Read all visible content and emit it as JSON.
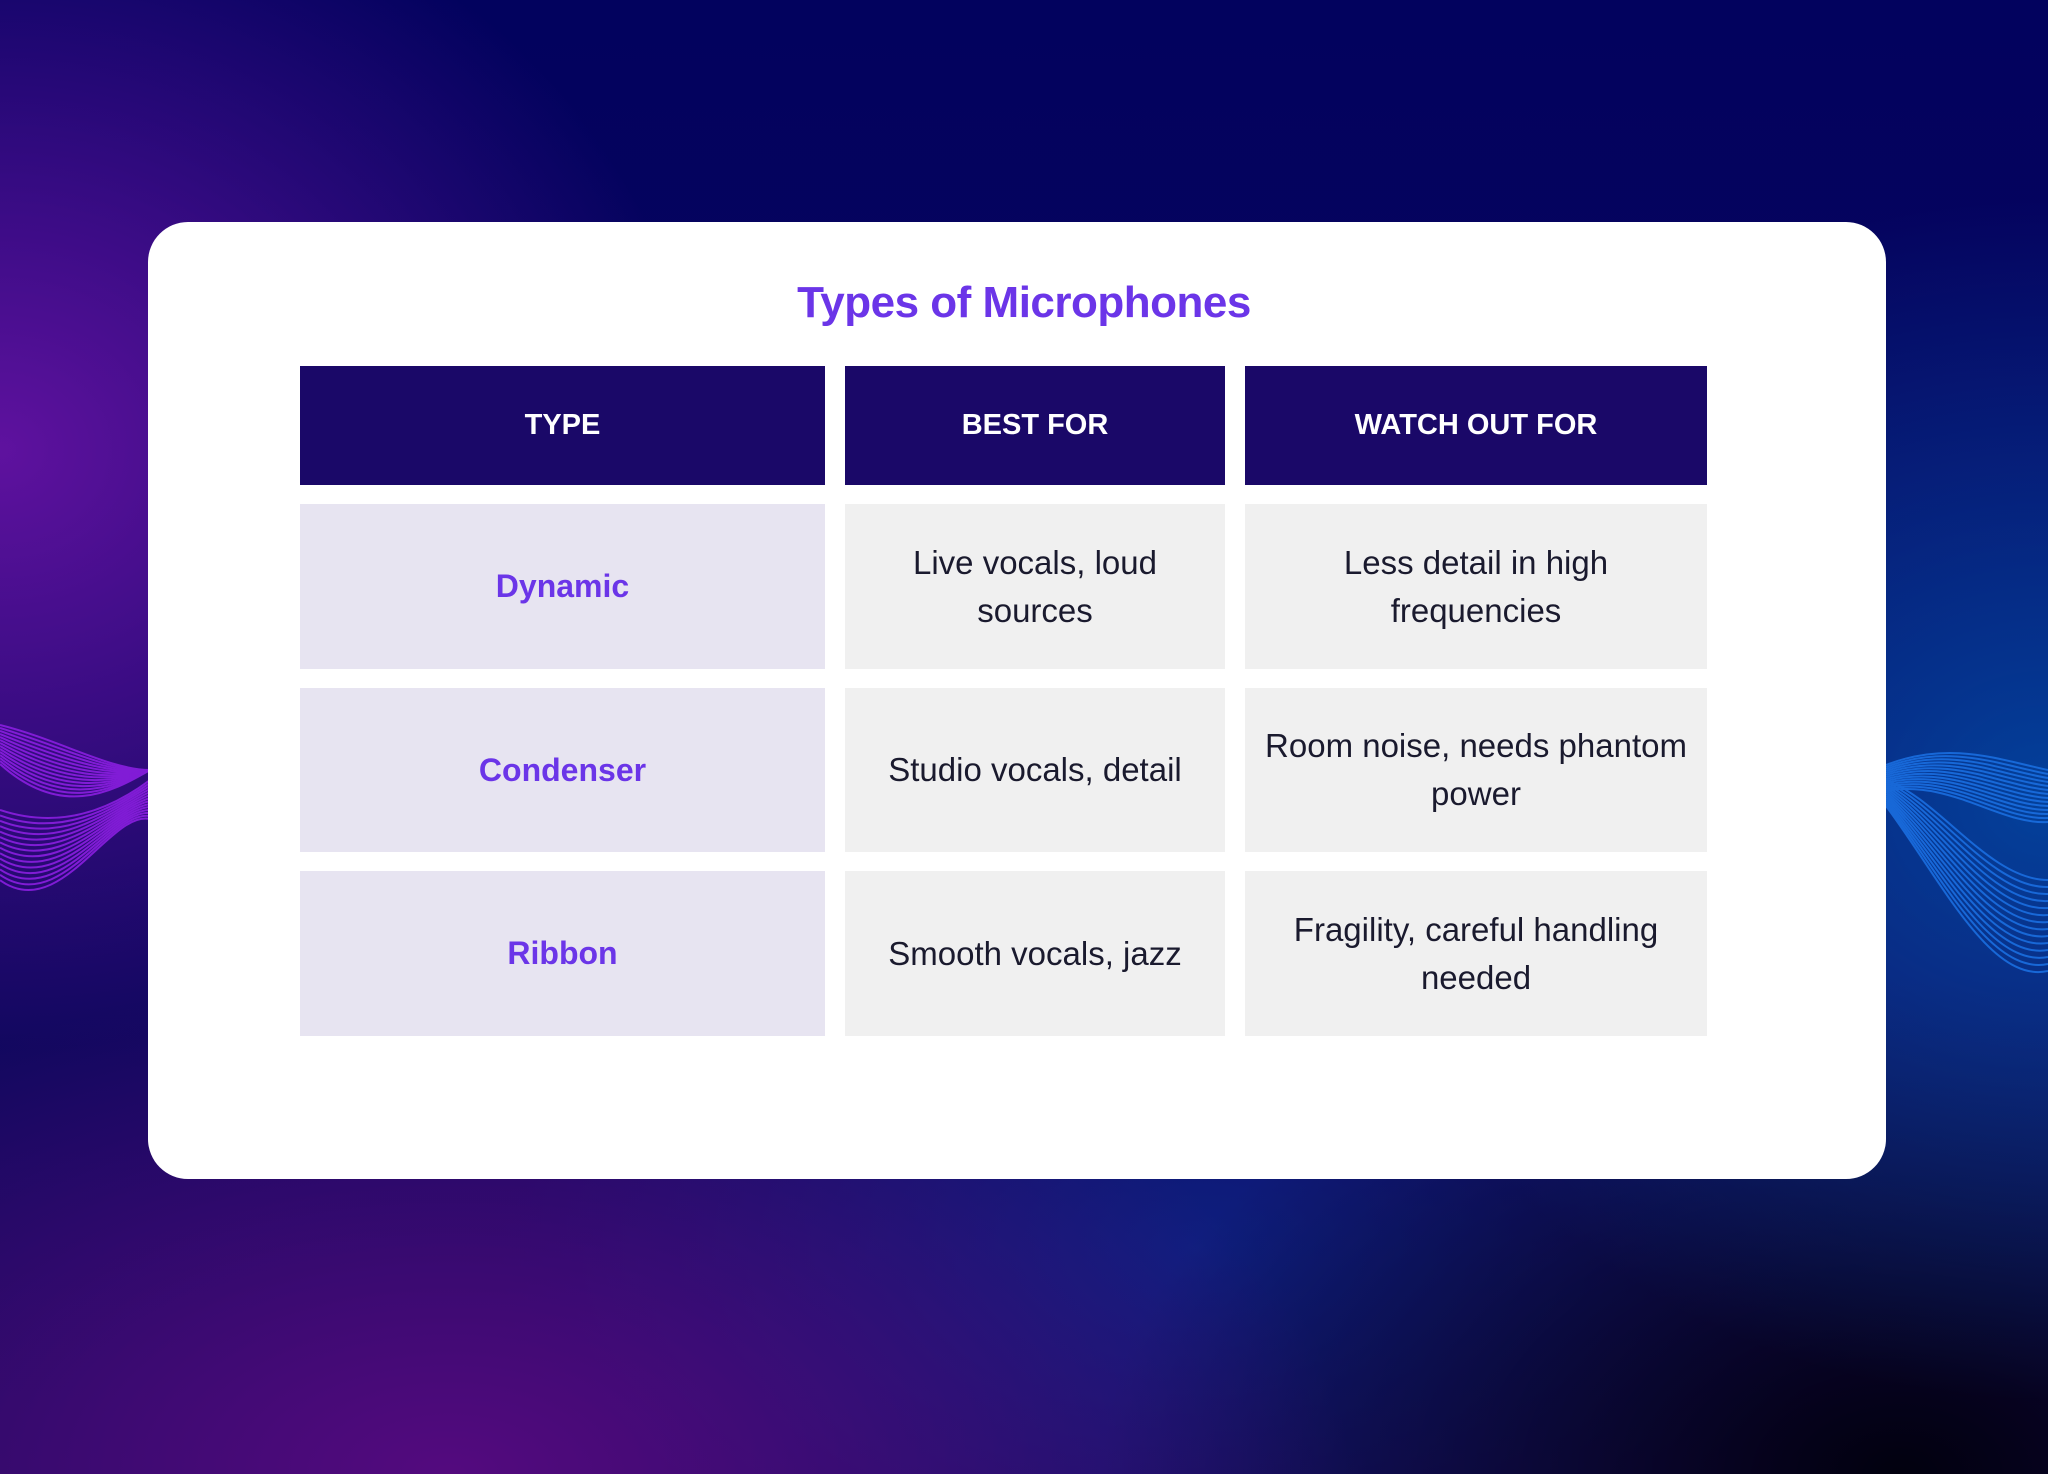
{
  "title": "Types of Microphones",
  "table": {
    "headers": [
      "TYPE",
      "BEST FOR",
      "WATCH OUT FOR"
    ],
    "rows": [
      {
        "type": "Dynamic",
        "best_for": "Live vocals, loud sources",
        "watch_out_for": "Less detail in high frequencies"
      },
      {
        "type": "Condenser",
        "best_for": "Studio vocals, detail",
        "watch_out_for": "Room noise, needs phantom power"
      },
      {
        "type": "Ribbon",
        "best_for": "Smooth vocals, jazz",
        "watch_out_for": "Fragility, careful handling needed"
      }
    ]
  },
  "colors": {
    "accent": "#6b35e8",
    "header_bg": "#1a0868",
    "type_cell_bg": "#e7e4f1",
    "cell_bg": "#f0f0f0"
  }
}
